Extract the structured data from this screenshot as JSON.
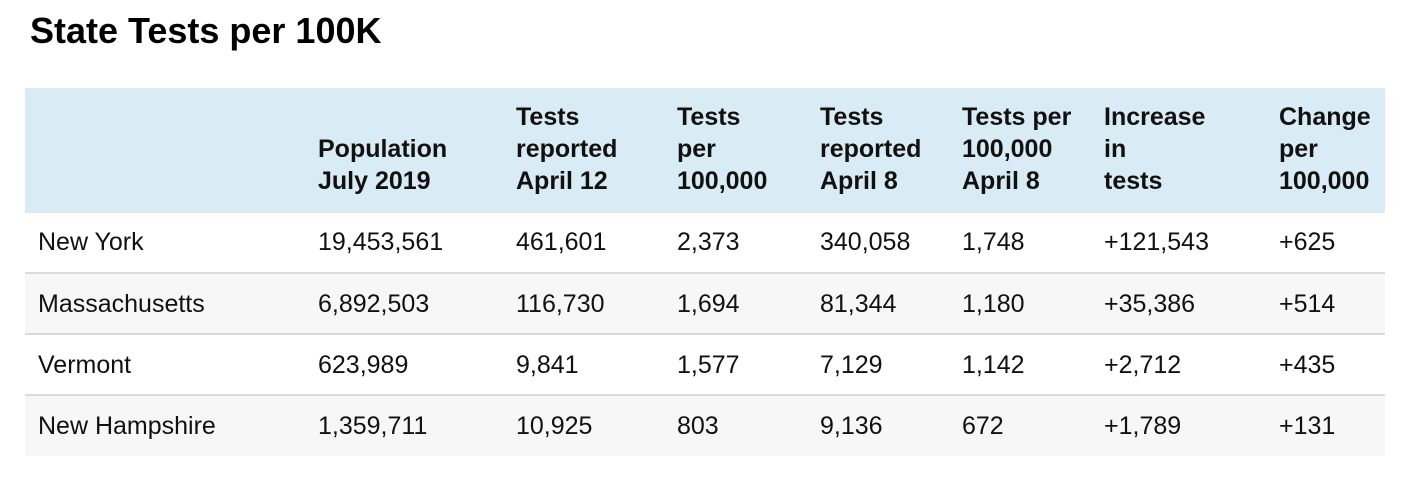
{
  "title": "State Tests per 100K",
  "table": {
    "columns": [
      "",
      "Population\nJuly 2019",
      "Tests\nreported\nApril 12",
      "Tests\nper\n100,000",
      "Tests\nreported\nApril 8",
      "Tests per\n100,000\nApril 8",
      "Increase\nin\ntests",
      "Change\nper\n100,000"
    ],
    "rows": [
      [
        "New York",
        "19,453,561",
        "461,601",
        "2,373",
        "340,058",
        "1,748",
        "+121,543",
        "+625"
      ],
      [
        "Massachusetts",
        "6,892,503",
        "116,730",
        "1,694",
        "81,344",
        "1,180",
        "+35,386",
        "+514"
      ],
      [
        "Vermont",
        "623,989",
        "9,841",
        "1,577",
        "7,129",
        "1,142",
        "+2,712",
        "+435"
      ],
      [
        "New Hampshire",
        "1,359,711",
        "10,925",
        "803",
        "9,136",
        "672",
        "+1,789",
        "+131"
      ]
    ]
  },
  "colors": {
    "header_background": "#d9ebf5",
    "alt_row_background": "#f7f7f7",
    "row_divider": "#dadada"
  }
}
